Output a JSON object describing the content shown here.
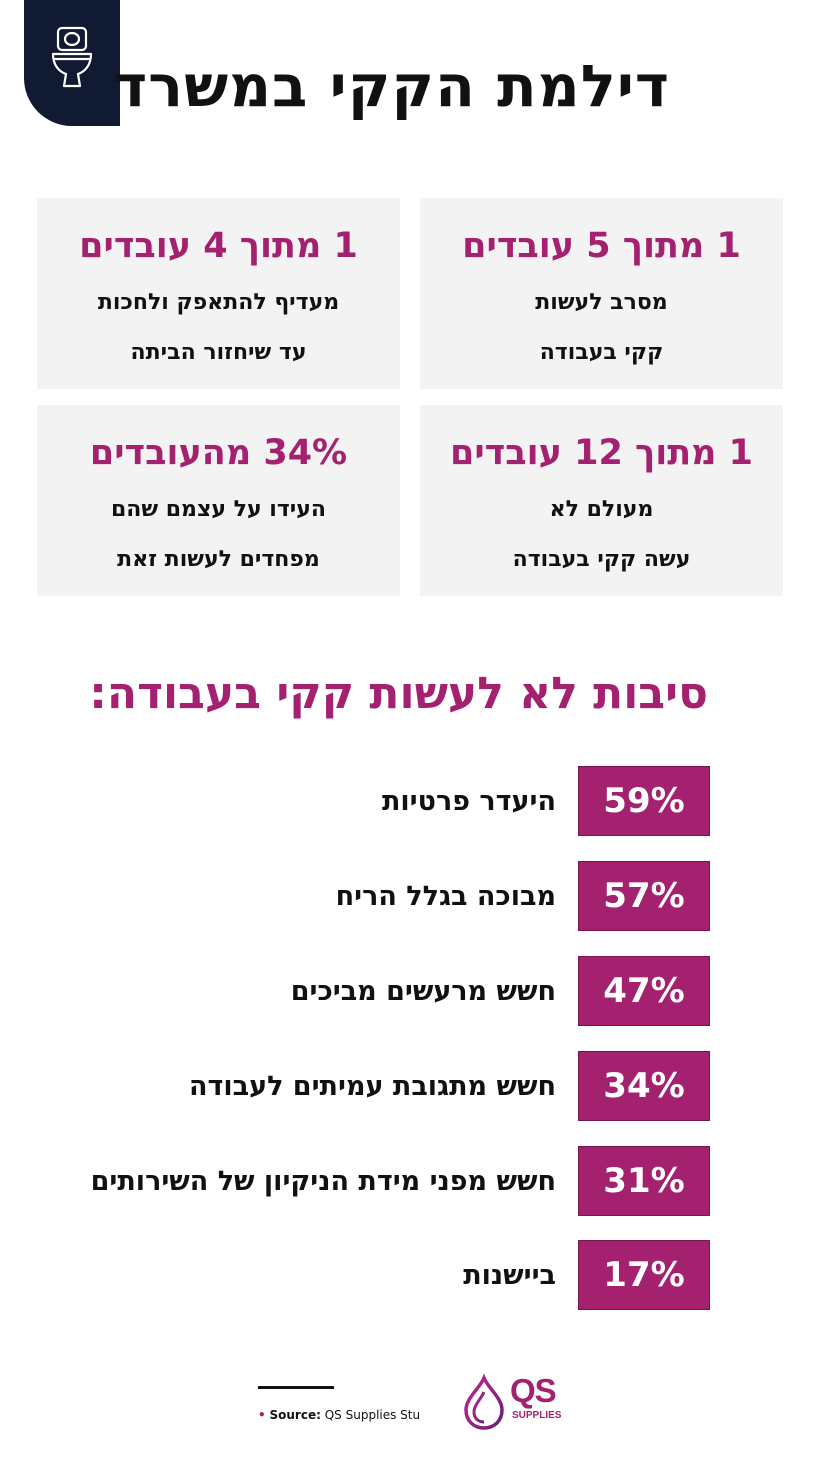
{
  "header": {
    "title": "דילמת הקקי במשרד",
    "icon": "toilet-icon"
  },
  "stats": [
    {
      "headline": "1 מתוך 5 עובדים",
      "line1": "מסרב לעשות",
      "line2": "קקי בעבודה"
    },
    {
      "headline": "1 מתוך 4 עובדים",
      "line1": "מעדיף להתאפק ולחכות",
      "line2": "עד שיחזור הביתה"
    },
    {
      "headline": "1 מתוך 12 עובדים",
      "line1": "מעולם לא",
      "line2": "עשה קקי בעבודה"
    },
    {
      "headline": "34% מהעובדים",
      "line1": "העידו על עצמם שהם",
      "line2": "מפחדים לעשות זאת"
    }
  ],
  "reasons_title": "סיבות לא לעשות קקי בעבודה:",
  "reasons": [
    {
      "percent": "59%",
      "label": "היעדר פרטיות"
    },
    {
      "percent": "57%",
      "label": "מבוכה בגלל הריח"
    },
    {
      "percent": "47%",
      "label": "חשש מרעשים מביכים"
    },
    {
      "percent": "34%",
      "label": "חשש מתגובת עמיתים לעבודה"
    },
    {
      "percent": "31%",
      "label": "חשש מפני מידת הניקיון של השירותים"
    },
    {
      "percent": "17%",
      "label": "ביישנות"
    }
  ],
  "footer": {
    "source_label": "Source:",
    "source_value": "QS Supplies Study",
    "logo_text": "QS",
    "logo_sub": "SUPPLIES"
  },
  "colors": {
    "accent": "#a3216f",
    "dark": "#111a33",
    "card_bg": "#f3f3f3"
  }
}
